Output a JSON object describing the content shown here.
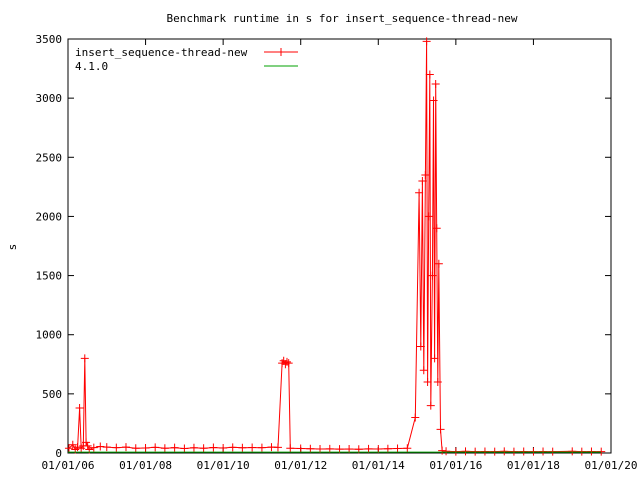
{
  "chart_data": {
    "type": "line",
    "title": "Benchmark runtime in s for insert_sequence-thread-new",
    "xlabel": "",
    "ylabel": "s",
    "xlim": [
      "2006-01-01",
      "2020-01-01"
    ],
    "ylim": [
      0,
      3500
    ],
    "x_ticks": [
      "01/01/06",
      "01/01/08",
      "01/01/10",
      "01/01/12",
      "01/01/14",
      "01/01/16",
      "01/01/18",
      "01/01/20"
    ],
    "y_ticks": [
      0,
      500,
      1000,
      1500,
      2000,
      2500,
      3000,
      3500
    ],
    "grid": false,
    "legend_position": "top-left",
    "series": [
      {
        "name": "insert_sequence-thread-new",
        "color": "#ff0000",
        "marker": "plus",
        "points": [
          [
            "2006-01-10",
            40
          ],
          [
            "2006-02-15",
            70
          ],
          [
            "2006-03-10",
            30
          ],
          [
            "2006-04-01",
            50
          ],
          [
            "2006-04-20",
            380
          ],
          [
            "2006-05-05",
            40
          ],
          [
            "2006-05-25",
            60
          ],
          [
            "2006-06-08",
            800
          ],
          [
            "2006-06-20",
            90
          ],
          [
            "2006-07-05",
            60
          ],
          [
            "2006-07-20",
            30
          ],
          [
            "2006-09-01",
            45
          ],
          [
            "2006-11-01",
            55
          ],
          [
            "2007-01-01",
            50
          ],
          [
            "2007-04-01",
            45
          ],
          [
            "2007-07-01",
            50
          ],
          [
            "2007-10-01",
            40
          ],
          [
            "2008-01-01",
            42
          ],
          [
            "2008-04-01",
            48
          ],
          [
            "2008-07-01",
            40
          ],
          [
            "2008-10-01",
            45
          ],
          [
            "2009-01-01",
            38
          ],
          [
            "2009-04-01",
            44
          ],
          [
            "2009-07-01",
            40
          ],
          [
            "2009-10-01",
            46
          ],
          [
            "2010-01-01",
            42
          ],
          [
            "2010-04-01",
            48
          ],
          [
            "2010-07-01",
            44
          ],
          [
            "2010-10-01",
            46
          ],
          [
            "2011-01-01",
            45
          ],
          [
            "2011-04-01",
            50
          ],
          [
            "2011-06-01",
            48
          ],
          [
            "2011-07-10",
            760
          ],
          [
            "2011-07-25",
            780
          ],
          [
            "2011-08-10",
            750
          ],
          [
            "2011-08-25",
            770
          ],
          [
            "2011-09-10",
            760
          ],
          [
            "2011-09-25",
            40
          ],
          [
            "2012-01-01",
            38
          ],
          [
            "2012-04-01",
            36
          ],
          [
            "2012-07-01",
            34
          ],
          [
            "2012-10-01",
            35
          ],
          [
            "2013-01-01",
            33
          ],
          [
            "2013-04-01",
            34
          ],
          [
            "2013-07-01",
            32
          ],
          [
            "2013-10-01",
            35
          ],
          [
            "2014-01-01",
            34
          ],
          [
            "2014-04-01",
            36
          ],
          [
            "2014-07-01",
            38
          ],
          [
            "2014-10-01",
            40
          ],
          [
            "2014-12-15",
            300
          ],
          [
            "2015-01-20",
            2200
          ],
          [
            "2015-02-05",
            900
          ],
          [
            "2015-02-20",
            2300
          ],
          [
            "2015-03-05",
            700
          ],
          [
            "2015-03-20",
            2350
          ],
          [
            "2015-04-01",
            3480
          ],
          [
            "2015-04-10",
            600
          ],
          [
            "2015-04-20",
            2000
          ],
          [
            "2015-05-01",
            3200
          ],
          [
            "2015-05-10",
            400
          ],
          [
            "2015-05-25",
            1500
          ],
          [
            "2015-06-05",
            2980
          ],
          [
            "2015-06-15",
            800
          ],
          [
            "2015-06-25",
            3120
          ],
          [
            "2015-07-05",
            1900
          ],
          [
            "2015-07-15",
            600
          ],
          [
            "2015-07-25",
            1600
          ],
          [
            "2015-08-10",
            200
          ],
          [
            "2015-08-25",
            20
          ],
          [
            "2015-10-01",
            15
          ],
          [
            "2016-01-01",
            12
          ],
          [
            "2016-04-01",
            14
          ],
          [
            "2016-07-01",
            12
          ],
          [
            "2016-10-01",
            13
          ],
          [
            "2017-01-01",
            12
          ],
          [
            "2017-04-01",
            14
          ],
          [
            "2017-07-01",
            12
          ],
          [
            "2017-10-01",
            13
          ],
          [
            "2018-01-01",
            12
          ],
          [
            "2018-04-01",
            13
          ],
          [
            "2018-07-01",
            12
          ],
          [
            "2019-01-01",
            14
          ],
          [
            "2019-04-01",
            12
          ],
          [
            "2019-07-01",
            13
          ],
          [
            "2019-10-01",
            12
          ]
        ]
      },
      {
        "name": "4.1.0",
        "color": "#00a000",
        "marker": "none",
        "points": [
          [
            "2006-01-01",
            8
          ],
          [
            "2019-10-01",
            8
          ]
        ]
      }
    ]
  }
}
